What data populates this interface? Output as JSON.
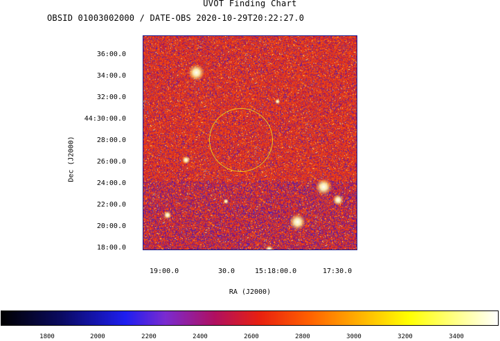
{
  "title": "UVOT Finding Chart",
  "subtitle": "OBSID 01003002000 / DATE-OBS 2020-10-29T20:22:27.0",
  "axes": {
    "ylabel": "Dec (J2000)",
    "xlabel": "RA (J2000)",
    "dec_ticks": [
      "36:00.0",
      "34:00.0",
      "32:00.0",
      "44:30:00.0",
      "28:00.0",
      "26:00.0",
      "24:00.0",
      "22:00.0",
      "20:00.0",
      "18:00.0"
    ],
    "ra_ticks": [
      "19:00.0",
      "30.0",
      "15:18:00.0",
      "17:30.0"
    ]
  },
  "colorbar": {
    "labels": [
      "1800",
      "2000",
      "2200",
      "2400",
      "2600",
      "2800",
      "3000",
      "3200",
      "3400"
    ]
  },
  "colors": {
    "circle": "#e6c81f",
    "background_field": "#e8401c",
    "axis_frame": "#1a1a8a"
  }
}
